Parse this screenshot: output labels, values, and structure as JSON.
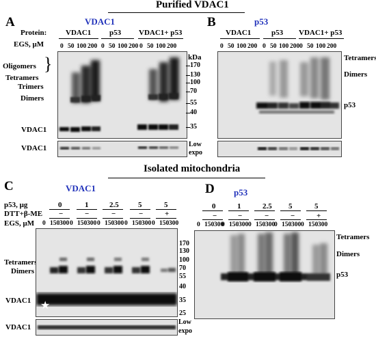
{
  "titles": {
    "purified": "Purified VDAC1",
    "isolated": "Isolated mitochondria"
  },
  "panel_A": {
    "letter": "A",
    "subtitle": "VDAC1",
    "protein_label": "Protein:",
    "proteins": [
      "VDAC1",
      "p53",
      "VDAC1+ p53"
    ],
    "egs_label": "EGS, μM",
    "egs_values": [
      "0",
      "50",
      "100",
      "200",
      "0",
      "50",
      "100",
      "200",
      "0",
      "50",
      "100",
      "200"
    ],
    "left_labels": [
      "Oligomers",
      "Tetramers",
      "Trimers",
      "Dimers",
      "VDAC1"
    ],
    "low_blot_label": "VDAC1"
  },
  "panel_B": {
    "letter": "B",
    "subtitle": "p53",
    "proteins": [
      "VDAC1",
      "p53",
      "VDAC1+ p53"
    ],
    "egs_values": [
      "0",
      "50",
      "100",
      "200",
      "0",
      "50",
      "100",
      "200",
      "0",
      "50",
      "100",
      "200"
    ],
    "right_labels": [
      "Tetramers",
      "Dimers",
      "p53"
    ]
  },
  "markers": {
    "kda_label": "kDa",
    "values": [
      "170",
      "130",
      "100",
      "70",
      "55",
      "40",
      "35"
    ],
    "low_expo": [
      "Low",
      "expo"
    ]
  },
  "panel_C": {
    "letter": "C",
    "subtitle": "VDAC1",
    "p53_label": "p53, μg",
    "p53_values": [
      "0",
      "1",
      "2.5",
      "5",
      "5"
    ],
    "dtt_label": "DTT+β-ME",
    "dtt_values": [
      "−",
      "−",
      "−",
      "−",
      "+"
    ],
    "egs_label": "EGS, μM",
    "egs_values": [
      "0",
      "150",
      "300",
      "0",
      "150",
      "300",
      "0",
      "150",
      "300",
      "0",
      "150",
      "300",
      "0",
      "150",
      "300"
    ],
    "left_labels": [
      "Tetramers",
      "Dimers",
      "VDAC1"
    ],
    "star": "★",
    "low_blot_label": "VDAC1"
  },
  "markers_C": {
    "values": [
      "170",
      "130",
      "100",
      "70",
      "55",
      "40",
      "35",
      "25"
    ],
    "low_expo": [
      "Low",
      "expo"
    ]
  },
  "panel_D": {
    "letter": "D",
    "subtitle": "p53",
    "p53_values": [
      "0",
      "1",
      "2.5",
      "5",
      "5"
    ],
    "dtt_values": [
      "−",
      "−",
      "−",
      "−",
      "+"
    ],
    "egs_values": [
      "0",
      "150",
      "300",
      "0",
      "150",
      "300",
      "0",
      "150",
      "300",
      "0",
      "150",
      "300",
      "0",
      "150",
      "300"
    ],
    "right_labels": [
      "Tetramers",
      "Dimers",
      "p53"
    ]
  }
}
